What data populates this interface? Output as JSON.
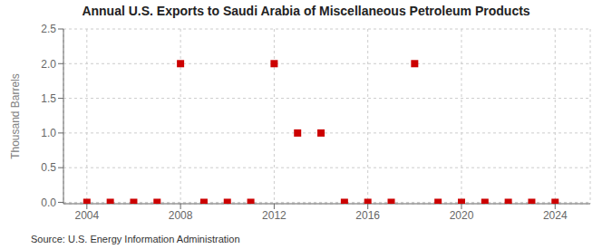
{
  "chart_data": {
    "type": "scatter",
    "title": "Annual U.S. Exports to Saudi Arabia of Miscellaneous Petroleum Products",
    "y_label": "Thousand Barrels",
    "source": "Source: U.S. Energy Information Administration",
    "x": [
      2004,
      2005,
      2006,
      2007,
      2008,
      2009,
      2010,
      2011,
      2012,
      2013,
      2014,
      2015,
      2016,
      2017,
      2018,
      2019,
      2020,
      2021,
      2022,
      2023,
      2024
    ],
    "values": [
      0,
      0,
      0,
      0,
      2,
      0,
      0,
      0,
      2,
      1,
      1,
      0,
      0,
      0,
      2,
      0,
      0,
      0,
      0,
      0,
      0
    ],
    "color": "#cc0000",
    "marker": "square",
    "grid": true,
    "xlim": [
      2003.0,
      2025.5
    ],
    "ylim": [
      -0.02,
      2.5
    ],
    "xticks": [
      2004,
      2008,
      2012,
      2016,
      2020,
      2024
    ],
    "yticks": [
      {
        "value": 0,
        "label": "0.0"
      },
      0.5,
      {
        "value": 1,
        "label": "1.0"
      },
      1.5,
      {
        "value": 2,
        "label": "2.0"
      },
      2.5
    ]
  }
}
